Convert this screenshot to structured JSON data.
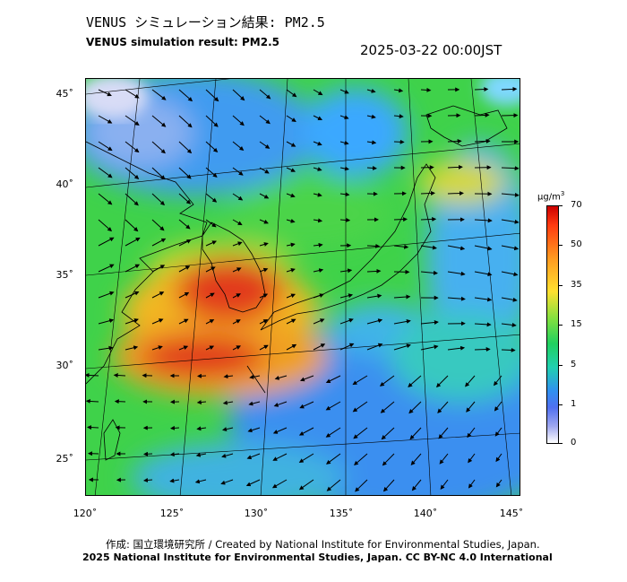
{
  "header": {
    "title_jp": "VENUS シミュレーション結果: PM2.5",
    "title_en": "VENUS simulation result: PM2.5",
    "timestamp": "2025-03-22 00:00JST"
  },
  "map": {
    "variable": "PM2.5",
    "lat_labels": [
      "45˚",
      "40˚",
      "35˚",
      "30˚",
      "25˚"
    ],
    "lon_labels": [
      "120˚",
      "125˚",
      "130˚",
      "135˚",
      "140˚",
      "145˚"
    ],
    "colors": {
      "background_field": "#3fd24a",
      "high_concentration": "#e0231a",
      "elevated_concentration": "#f7b21c",
      "low_concentration": "#3a8ff0",
      "clean_air": "#d8dcf6",
      "coastline": "#000000",
      "wind_arrow": "#000000"
    },
    "overlays": [
      "coastline",
      "graticule",
      "wind-vectors"
    ]
  },
  "legend": {
    "unit": "µg/m",
    "unit_sup": "3",
    "ticks": [
      "70",
      "50",
      "35",
      "15",
      "5",
      "1",
      "0"
    ]
  },
  "credits": {
    "line1": "作成: 国立環境研究所 / Created by National Institute for Environmental Studies, Japan.",
    "line2": "2025 National Institute for Environmental Studies, Japan. CC BY-NC 4.0 International"
  }
}
